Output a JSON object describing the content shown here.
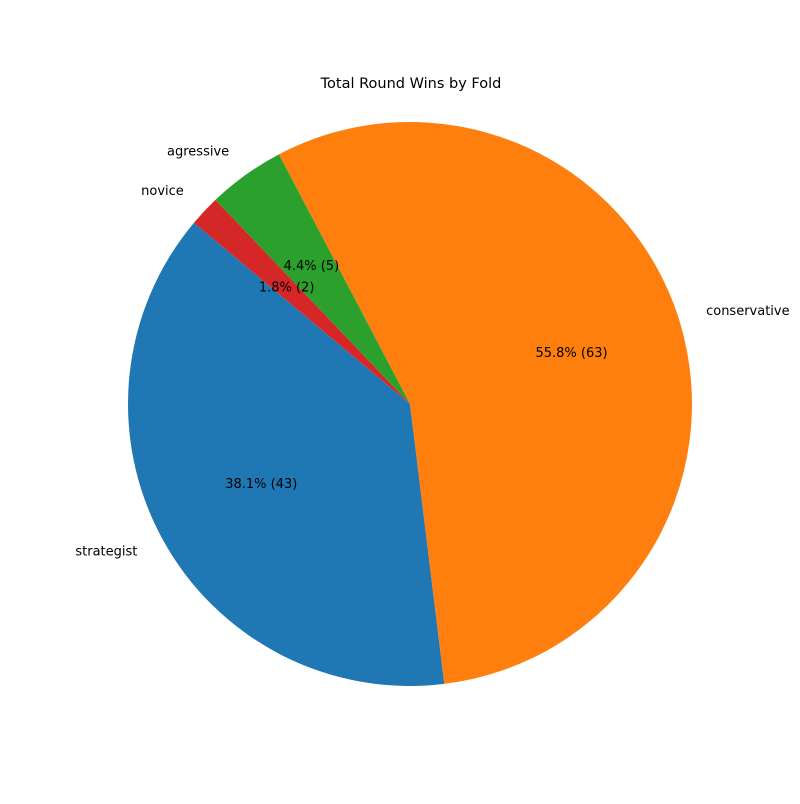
{
  "chart_data": {
    "type": "pie",
    "title": "Total Round Wins by Fold",
    "categories": [
      "strategist",
      "conservative",
      "agressive",
      "novice"
    ],
    "values": [
      43,
      63,
      5,
      2
    ],
    "percent_labels": [
      "38.1% (43)",
      "55.8% (63)",
      "4.4% (5)",
      "1.8% (2)"
    ],
    "colors": [
      "#1f77b4",
      "#ff7f0e",
      "#2ca02c",
      "#d62728"
    ],
    "start_angle_deg": 140,
    "direction": "counterclockwise",
    "legend": "none"
  }
}
